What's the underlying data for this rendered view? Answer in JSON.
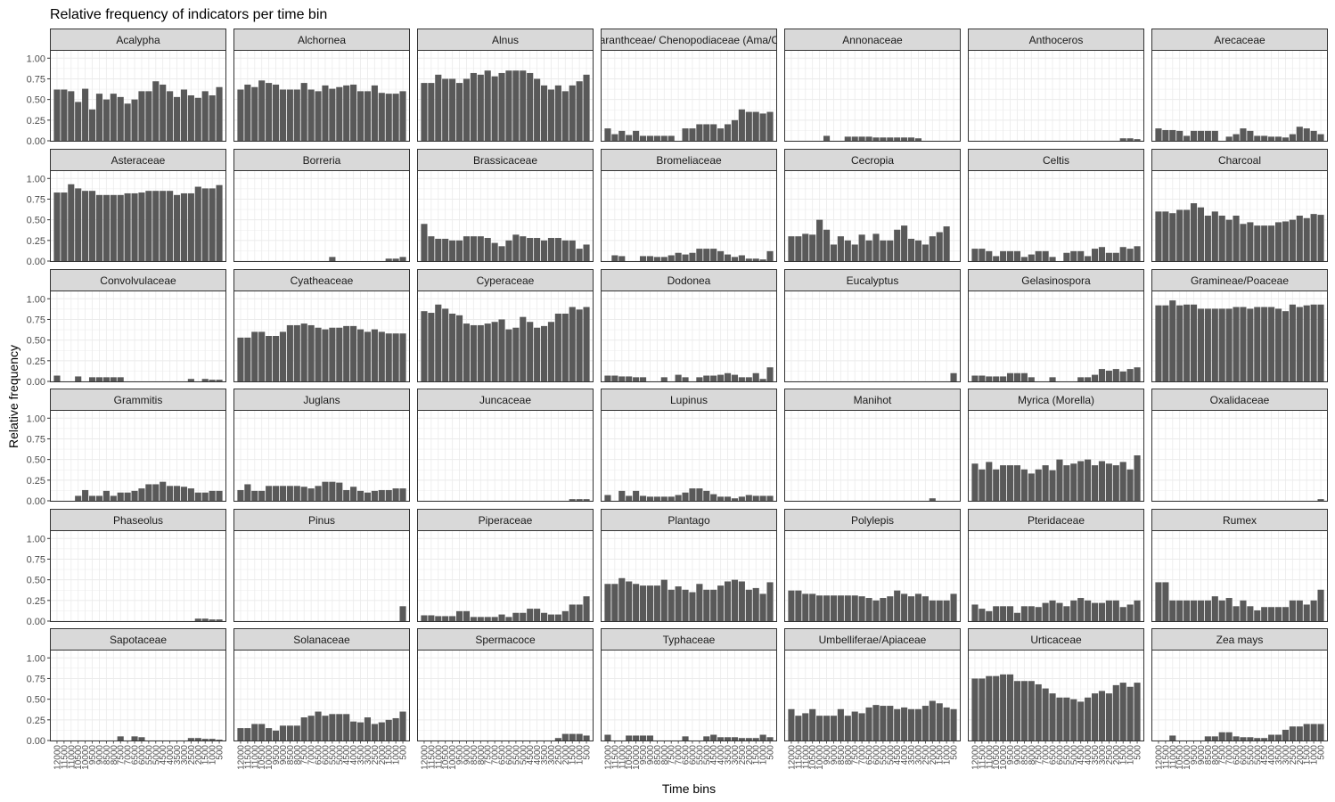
{
  "chart_data": {
    "type": "bar",
    "title": "Relative frequency of indicators per time bin",
    "xlabel": "Time bins",
    "ylabel": "Relative frequency",
    "ylim": [
      0,
      1.1
    ],
    "yticks": [
      "0.00",
      "0.25",
      "0.50",
      "0.75",
      "1.00"
    ],
    "x_tick_labels": [
      "12000",
      "11500",
      "11000",
      "10500",
      "10000",
      "9500",
      "9000",
      "8500",
      "8000",
      "7500",
      "7000",
      "6500",
      "6000",
      "5500",
      "5000",
      "4500",
      "4000",
      "3500",
      "3000",
      "2500",
      "2000",
      "1500",
      "1000",
      "500"
    ],
    "bar_color": "#595959",
    "grid": true,
    "facets": [
      {
        "name": "Acalypha",
        "values": [
          0.62,
          0.62,
          0.6,
          0.47,
          0.63,
          0.38,
          0.57,
          0.5,
          0.57,
          0.53,
          0.45,
          0.5,
          0.6,
          0.6,
          0.72,
          0.68,
          0.6,
          0.53,
          0.62,
          0.55,
          0.52,
          0.6,
          0.55,
          0.65
        ]
      },
      {
        "name": "Alchornea",
        "values": [
          0.62,
          0.68,
          0.65,
          0.73,
          0.7,
          0.68,
          0.62,
          0.62,
          0.62,
          0.7,
          0.62,
          0.6,
          0.67,
          0.63,
          0.65,
          0.67,
          0.68,
          0.6,
          0.6,
          0.67,
          0.58,
          0.57,
          0.57,
          0.6
        ]
      },
      {
        "name": "Alnus",
        "values": [
          0.7,
          0.7,
          0.8,
          0.75,
          0.75,
          0.7,
          0.75,
          0.82,
          0.8,
          0.85,
          0.78,
          0.82,
          0.85,
          0.85,
          0.85,
          0.82,
          0.75,
          0.67,
          0.62,
          0.67,
          0.6,
          0.67,
          0.72,
          0.8
        ]
      },
      {
        "name": "Amaranthceae/ Chenopodiaceae (Ama/Che)",
        "values": [
          0.15,
          0.08,
          0.12,
          0.07,
          0.12,
          0.06,
          0.06,
          0.06,
          0.06,
          0.06,
          0.0,
          0.15,
          0.15,
          0.2,
          0.2,
          0.2,
          0.15,
          0.2,
          0.25,
          0.38,
          0.35,
          0.35,
          0.33,
          0.35
        ]
      },
      {
        "name": "Annonaceae",
        "values": [
          0,
          0,
          0,
          0,
          0,
          0.06,
          0,
          0,
          0.05,
          0.05,
          0.05,
          0.05,
          0.04,
          0.04,
          0.04,
          0.04,
          0.04,
          0.04,
          0.03,
          0,
          0,
          0,
          0,
          0
        ]
      },
      {
        "name": "Anthoceros",
        "values": [
          0,
          0,
          0,
          0,
          0,
          0,
          0,
          0,
          0,
          0,
          0,
          0,
          0,
          0,
          0,
          0,
          0,
          0,
          0,
          0,
          0,
          0.03,
          0.03,
          0.02
        ]
      },
      {
        "name": "Arecaceae",
        "values": [
          0.15,
          0.13,
          0.13,
          0.12,
          0.06,
          0.12,
          0.12,
          0.12,
          0.12,
          0.0,
          0.05,
          0.08,
          0.15,
          0.12,
          0.06,
          0.06,
          0.05,
          0.05,
          0.04,
          0.08,
          0.17,
          0.15,
          0.12,
          0.08
        ]
      },
      {
        "name": "Asteraceae",
        "values": [
          0.83,
          0.83,
          0.93,
          0.88,
          0.85,
          0.85,
          0.8,
          0.8,
          0.8,
          0.8,
          0.82,
          0.82,
          0.83,
          0.85,
          0.85,
          0.85,
          0.85,
          0.8,
          0.82,
          0.82,
          0.9,
          0.88,
          0.88,
          0.92
        ]
      },
      {
        "name": "Borreria",
        "values": [
          0,
          0,
          0,
          0,
          0,
          0,
          0,
          0,
          0,
          0,
          0,
          0,
          0,
          0.05,
          0,
          0,
          0,
          0,
          0,
          0,
          0,
          0.03,
          0.03,
          0.05
        ]
      },
      {
        "name": "Brassicaceae",
        "values": [
          0.45,
          0.3,
          0.27,
          0.27,
          0.25,
          0.25,
          0.3,
          0.3,
          0.3,
          0.28,
          0.22,
          0.18,
          0.25,
          0.32,
          0.3,
          0.28,
          0.28,
          0.25,
          0.28,
          0.28,
          0.25,
          0.25,
          0.15,
          0.2
        ]
      },
      {
        "name": "Bromeliaceae",
        "values": [
          0,
          0.07,
          0.06,
          0,
          0,
          0.06,
          0.06,
          0.05,
          0.05,
          0.07,
          0.1,
          0.08,
          0.1,
          0.15,
          0.15,
          0.15,
          0.12,
          0.08,
          0.05,
          0.07,
          0.03,
          0.03,
          0.02,
          0.12
        ]
      },
      {
        "name": "Cecropia",
        "values": [
          0.3,
          0.3,
          0.33,
          0.32,
          0.5,
          0.38,
          0.2,
          0.3,
          0.25,
          0.2,
          0.32,
          0.25,
          0.33,
          0.25,
          0.25,
          0.38,
          0.43,
          0.27,
          0.25,
          0.2,
          0.3,
          0.35,
          0.42,
          0.0
        ]
      },
      {
        "name": "Celtis",
        "values": [
          0.15,
          0.15,
          0.12,
          0.06,
          0.12,
          0.12,
          0.12,
          0.05,
          0.08,
          0.12,
          0.12,
          0.05,
          0.0,
          0.1,
          0.12,
          0.12,
          0.06,
          0.15,
          0.17,
          0.1,
          0.1,
          0.17,
          0.15,
          0.18
        ]
      },
      {
        "name": "Charcoal",
        "values": [
          0.6,
          0.6,
          0.58,
          0.62,
          0.62,
          0.7,
          0.65,
          0.55,
          0.6,
          0.55,
          0.5,
          0.55,
          0.45,
          0.47,
          0.43,
          0.43,
          0.43,
          0.47,
          0.48,
          0.5,
          0.55,
          0.52,
          0.57,
          0.56
        ]
      },
      {
        "name": "Convolvulaceae",
        "values": [
          0.07,
          0,
          0,
          0.06,
          0,
          0.05,
          0.05,
          0.05,
          0.05,
          0.05,
          0,
          0,
          0,
          0,
          0,
          0,
          0,
          0,
          0,
          0.03,
          0,
          0.03,
          0.02,
          0.02
        ]
      },
      {
        "name": "Cyatheaceae",
        "values": [
          0.53,
          0.53,
          0.6,
          0.6,
          0.55,
          0.55,
          0.6,
          0.68,
          0.68,
          0.7,
          0.68,
          0.65,
          0.63,
          0.65,
          0.65,
          0.67,
          0.67,
          0.63,
          0.6,
          0.63,
          0.6,
          0.58,
          0.58,
          0.58
        ]
      },
      {
        "name": "Cyperaceae",
        "values": [
          0.85,
          0.83,
          0.93,
          0.88,
          0.82,
          0.8,
          0.7,
          0.68,
          0.68,
          0.7,
          0.72,
          0.75,
          0.63,
          0.65,
          0.78,
          0.72,
          0.65,
          0.67,
          0.72,
          0.82,
          0.82,
          0.9,
          0.87,
          0.9
        ]
      },
      {
        "name": "Dodonea",
        "values": [
          0.07,
          0.07,
          0.06,
          0.06,
          0.05,
          0.05,
          0,
          0,
          0.05,
          0,
          0.08,
          0.05,
          0,
          0.05,
          0.07,
          0.07,
          0.08,
          0.1,
          0.08,
          0.05,
          0.05,
          0.1,
          0.03,
          0.17
        ]
      },
      {
        "name": "Eucalyptus",
        "values": [
          0,
          0,
          0,
          0,
          0,
          0,
          0,
          0,
          0,
          0,
          0,
          0,
          0,
          0,
          0,
          0,
          0,
          0,
          0,
          0,
          0,
          0,
          0,
          0.1
        ]
      },
      {
        "name": "Gelasinospora",
        "values": [
          0.07,
          0.07,
          0.06,
          0.06,
          0.06,
          0.1,
          0.1,
          0.1,
          0.05,
          0,
          0,
          0.05,
          0,
          0,
          0,
          0.05,
          0.05,
          0.08,
          0.15,
          0.13,
          0.15,
          0.12,
          0.15,
          0.17
        ]
      },
      {
        "name": "Gramineae/Poaceae",
        "values": [
          0.92,
          0.92,
          0.98,
          0.92,
          0.93,
          0.93,
          0.88,
          0.88,
          0.88,
          0.88,
          0.88,
          0.9,
          0.9,
          0.88,
          0.9,
          0.9,
          0.9,
          0.88,
          0.85,
          0.93,
          0.9,
          0.92,
          0.93,
          0.93
        ]
      },
      {
        "name": "Grammitis",
        "values": [
          0,
          0,
          0,
          0.06,
          0.13,
          0.06,
          0.06,
          0.12,
          0.06,
          0.1,
          0.1,
          0.12,
          0.15,
          0.2,
          0.2,
          0.23,
          0.18,
          0.18,
          0.17,
          0.15,
          0.1,
          0.1,
          0.12,
          0.12
        ]
      },
      {
        "name": "Juglans",
        "values": [
          0.13,
          0.2,
          0.12,
          0.12,
          0.18,
          0.18,
          0.18,
          0.18,
          0.18,
          0.17,
          0.15,
          0.18,
          0.23,
          0.23,
          0.22,
          0.13,
          0.17,
          0.12,
          0.1,
          0.12,
          0.13,
          0.13,
          0.15,
          0.15
        ]
      },
      {
        "name": "Juncaceae",
        "values": [
          0,
          0,
          0,
          0,
          0,
          0,
          0,
          0,
          0,
          0,
          0,
          0,
          0,
          0,
          0,
          0,
          0,
          0,
          0,
          0,
          0,
          0.02,
          0.02,
          0.02
        ]
      },
      {
        "name": "Lupinus",
        "values": [
          0.07,
          0,
          0.12,
          0.06,
          0.12,
          0.06,
          0.05,
          0.05,
          0.05,
          0.05,
          0.07,
          0.1,
          0.15,
          0.15,
          0.12,
          0.08,
          0.05,
          0.05,
          0.03,
          0.05,
          0.07,
          0.06,
          0.06,
          0.06
        ]
      },
      {
        "name": "Manihot",
        "values": [
          0,
          0,
          0,
          0,
          0,
          0,
          0,
          0,
          0,
          0,
          0,
          0,
          0,
          0,
          0,
          0,
          0,
          0,
          0,
          0,
          0.03,
          0,
          0,
          0
        ]
      },
      {
        "name": "Myrica (Morella)",
        "values": [
          0.45,
          0.38,
          0.47,
          0.38,
          0.43,
          0.43,
          0.43,
          0.38,
          0.33,
          0.38,
          0.43,
          0.37,
          0.5,
          0.43,
          0.45,
          0.48,
          0.5,
          0.43,
          0.48,
          0.45,
          0.43,
          0.47,
          0.38,
          0.55
        ]
      },
      {
        "name": "Oxalidaceae",
        "values": [
          0,
          0,
          0,
          0,
          0,
          0,
          0,
          0,
          0,
          0,
          0,
          0,
          0,
          0,
          0,
          0,
          0,
          0,
          0,
          0,
          0,
          0,
          0,
          0.02
        ]
      },
      {
        "name": "Phaseolus",
        "values": [
          0,
          0,
          0,
          0,
          0,
          0,
          0,
          0,
          0,
          0,
          0,
          0,
          0,
          0,
          0,
          0,
          0,
          0,
          0,
          0,
          0.03,
          0.03,
          0.02,
          0.02
        ]
      },
      {
        "name": "Pinus",
        "values": [
          0,
          0,
          0,
          0,
          0,
          0,
          0,
          0,
          0,
          0,
          0,
          0,
          0,
          0,
          0,
          0,
          0,
          0,
          0,
          0,
          0,
          0,
          0,
          0.18
        ]
      },
      {
        "name": "Piperaceae",
        "values": [
          0.07,
          0.07,
          0.06,
          0.06,
          0.06,
          0.12,
          0.12,
          0.05,
          0.05,
          0.05,
          0.05,
          0.08,
          0.05,
          0.1,
          0.1,
          0.15,
          0.15,
          0.1,
          0.08,
          0.08,
          0.12,
          0.2,
          0.2,
          0.3
        ]
      },
      {
        "name": "Plantago",
        "values": [
          0.45,
          0.45,
          0.52,
          0.48,
          0.45,
          0.43,
          0.43,
          0.43,
          0.5,
          0.38,
          0.42,
          0.38,
          0.35,
          0.45,
          0.38,
          0.38,
          0.43,
          0.48,
          0.5,
          0.48,
          0.38,
          0.4,
          0.33,
          0.47
        ]
      },
      {
        "name": "Polylepis",
        "values": [
          0.37,
          0.37,
          0.33,
          0.33,
          0.31,
          0.31,
          0.31,
          0.31,
          0.31,
          0.31,
          0.3,
          0.28,
          0.25,
          0.28,
          0.3,
          0.37,
          0.33,
          0.3,
          0.33,
          0.3,
          0.25,
          0.25,
          0.25,
          0.33
        ]
      },
      {
        "name": "Pteridaceae",
        "values": [
          0.2,
          0.15,
          0.12,
          0.18,
          0.18,
          0.18,
          0.1,
          0.18,
          0.18,
          0.17,
          0.22,
          0.25,
          0.22,
          0.18,
          0.25,
          0.28,
          0.25,
          0.22,
          0.22,
          0.25,
          0.25,
          0.17,
          0.2,
          0.25
        ]
      },
      {
        "name": "Rumex",
        "values": [
          0.47,
          0.47,
          0.25,
          0.25,
          0.25,
          0.25,
          0.25,
          0.25,
          0.3,
          0.25,
          0.28,
          0.18,
          0.25,
          0.18,
          0.13,
          0.17,
          0.17,
          0.17,
          0.17,
          0.25,
          0.25,
          0.2,
          0.25,
          0.38
        ]
      },
      {
        "name": "Sapotaceae",
        "values": [
          0,
          0,
          0,
          0,
          0,
          0,
          0,
          0,
          0,
          0.05,
          0,
          0.05,
          0.04,
          0,
          0,
          0,
          0,
          0,
          0,
          0.03,
          0.03,
          0.02,
          0.02,
          0.01
        ]
      },
      {
        "name": "Solanaceae",
        "values": [
          0.15,
          0.15,
          0.2,
          0.2,
          0.15,
          0.12,
          0.18,
          0.18,
          0.18,
          0.28,
          0.3,
          0.35,
          0.3,
          0.32,
          0.32,
          0.32,
          0.23,
          0.22,
          0.28,
          0.2,
          0.22,
          0.25,
          0.27,
          0.35
        ]
      },
      {
        "name": "Spermacoce",
        "values": [
          0,
          0,
          0,
          0,
          0,
          0,
          0,
          0,
          0,
          0,
          0,
          0,
          0,
          0,
          0,
          0,
          0,
          0,
          0,
          0.03,
          0.08,
          0.08,
          0.08,
          0.06
        ]
      },
      {
        "name": "Typhaceae",
        "values": [
          0.07,
          0,
          0,
          0.06,
          0.06,
          0.06,
          0.06,
          0,
          0,
          0,
          0,
          0.05,
          0,
          0,
          0.05,
          0.07,
          0.04,
          0.04,
          0.04,
          0.03,
          0.03,
          0.03,
          0.07,
          0.04
        ]
      },
      {
        "name": "Umbelliferae/Apiaceae",
        "values": [
          0.38,
          0.3,
          0.33,
          0.38,
          0.3,
          0.3,
          0.3,
          0.38,
          0.3,
          0.35,
          0.33,
          0.4,
          0.43,
          0.42,
          0.42,
          0.38,
          0.4,
          0.38,
          0.38,
          0.42,
          0.48,
          0.45,
          0.4,
          0.38
        ]
      },
      {
        "name": "Urticaceae",
        "values": [
          0.75,
          0.75,
          0.78,
          0.78,
          0.8,
          0.8,
          0.72,
          0.72,
          0.72,
          0.68,
          0.63,
          0.57,
          0.52,
          0.52,
          0.5,
          0.47,
          0.52,
          0.57,
          0.6,
          0.57,
          0.67,
          0.7,
          0.65,
          0.7
        ]
      },
      {
        "name": "Zea mays",
        "values": [
          0,
          0,
          0.06,
          0,
          0,
          0,
          0,
          0.05,
          0.05,
          0.1,
          0.1,
          0.05,
          0.04,
          0.04,
          0.03,
          0.03,
          0.07,
          0.07,
          0.13,
          0.17,
          0.17,
          0.2,
          0.2,
          0.2
        ]
      }
    ]
  }
}
